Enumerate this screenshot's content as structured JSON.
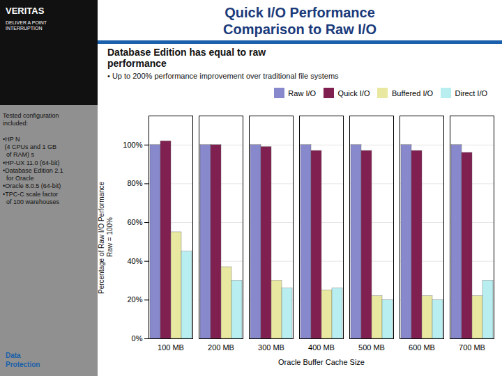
{
  "chart_data": {
    "type": "bar",
    "title": "Quick I/O Performance\nComparison to Raw I/O",
    "subtitle": "Database Edition has equal to raw\nperformance",
    "annotations": [
      "VERITAS",
      "DELIVER A POINT\nINTERRUPTION",
      "Tested configuration\nincluded:\n\n•HP N\n (4 CPUs and 1 GB\n  of RAM) s\n•HP-UX 11.0 (64-bit)\n•Database Edition 2.1\n  for Oracle\n•Oracle 8.0.5 (64-bit)\n•TPC-C scale factor\n  of 100 warehouses",
      "Data\nProtection",
      "• Up to 200% performance improvement over traditional file systems"
    ],
    "xlabel": "Oracle Buffer Cache Size",
    "ylabel": "Percentage of Raw I/O Performance\nRaw = 100%",
    "categories": [
      "100 MB",
      "200 MB",
      "300 MB",
      "400 MB",
      "500 MB",
      "600 MB",
      "700 MB"
    ],
    "series": [
      {
        "name": "Raw I/O",
        "color": "#8888cc",
        "values": [
          100,
          100,
          100,
          100,
          100,
          100,
          100
        ]
      },
      {
        "name": "Quick I/O",
        "color": "#802050",
        "values": [
          102,
          100,
          99,
          97,
          97,
          97,
          96
        ]
      },
      {
        "name": "Buffered I/O",
        "color": "#e8e8a0",
        "values": [
          55,
          37,
          30,
          25,
          22,
          22,
          22
        ]
      },
      {
        "name": "Direct I/O",
        "color": "#b8eef0",
        "values": [
          45,
          30,
          26,
          26,
          20,
          20,
          30
        ]
      }
    ],
    "ylim": [
      0,
      115
    ],
    "yticks": [
      {
        "value": 0,
        "label": "0%"
      },
      {
        "value": 20,
        "label": "20%"
      },
      {
        "value": 40,
        "label": "40%"
      },
      {
        "value": 60,
        "label": "60%"
      },
      {
        "value": 80,
        "label": "80%"
      },
      {
        "value": 100,
        "label": "100%"
      }
    ],
    "grid": true,
    "legend": "upper right"
  }
}
